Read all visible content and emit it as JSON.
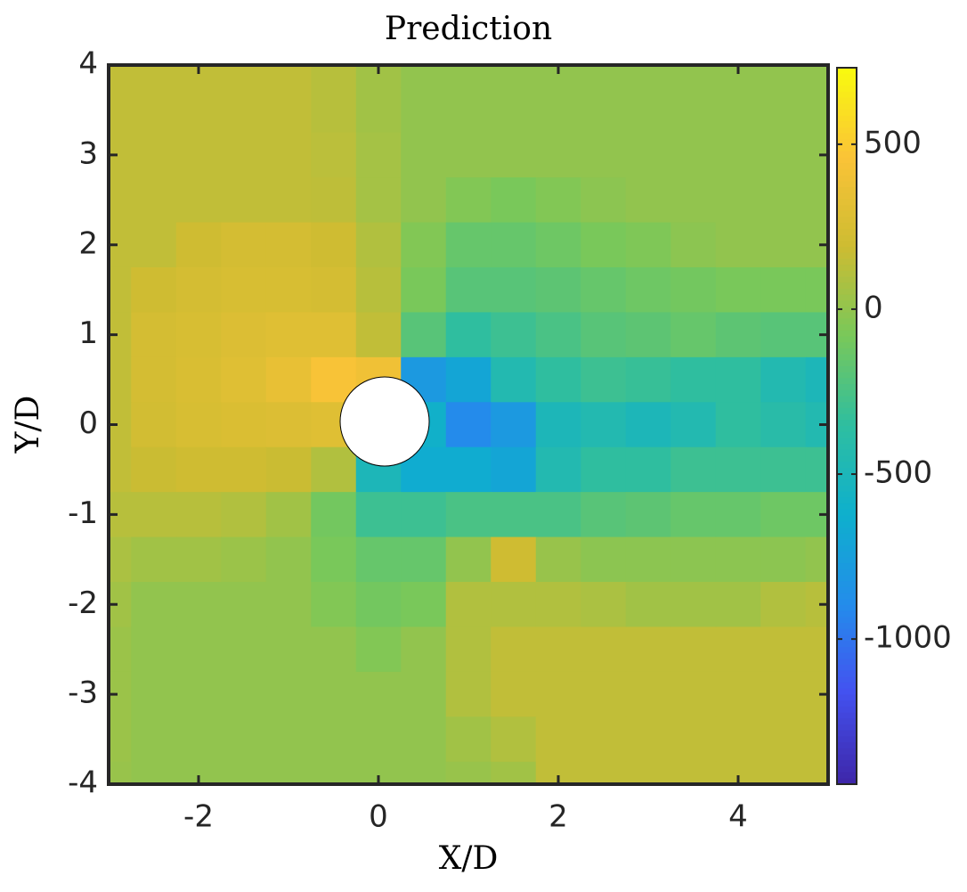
{
  "chart_data": {
    "type": "contour",
    "title": "Prediction",
    "xlabel": "X/D",
    "ylabel": "Y/D",
    "xlim": [
      -3,
      5
    ],
    "ylim": [
      -4,
      4
    ],
    "xticks": [
      -2,
      0,
      2,
      4
    ],
    "yticks": [
      -4,
      -3,
      -2,
      -1,
      0,
      1,
      2,
      3,
      4
    ],
    "clim": [
      -1440,
      732
    ],
    "cticks": [
      -1000,
      -500,
      0,
      500
    ],
    "colormap": "parula",
    "x": [
      -3,
      -2.5,
      -2,
      -1.5,
      -1,
      -0.5,
      0,
      0.5,
      1,
      1.5,
      2,
      2.5,
      3,
      3.5,
      4,
      4.5,
      5
    ],
    "y": [
      4,
      3.5,
      3,
      2.5,
      2,
      1.5,
      1,
      0.5,
      0,
      -0.5,
      -1,
      -1.5,
      -2,
      -2.5,
      -3,
      -3.5,
      -4
    ],
    "z": [
      [
        150,
        150,
        150,
        150,
        150,
        120,
        50,
        0,
        0,
        0,
        0,
        0,
        0,
        0,
        0,
        0,
        0
      ],
      [
        150,
        150,
        150,
        150,
        150,
        120,
        50,
        0,
        0,
        0,
        0,
        0,
        0,
        0,
        0,
        0,
        0
      ],
      [
        150,
        150,
        150,
        150,
        150,
        130,
        60,
        0,
        0,
        0,
        0,
        0,
        0,
        0,
        0,
        0,
        0
      ],
      [
        150,
        150,
        150,
        150,
        150,
        140,
        60,
        0,
        -50,
        -80,
        -50,
        -20,
        0,
        0,
        0,
        0,
        0
      ],
      [
        150,
        150,
        200,
        230,
        230,
        200,
        100,
        -50,
        -150,
        -150,
        -120,
        -80,
        -60,
        -20,
        0,
        0,
        0
      ],
      [
        150,
        200,
        230,
        250,
        250,
        230,
        120,
        -80,
        -200,
        -200,
        -180,
        -150,
        -120,
        -100,
        -80,
        -80,
        -80
      ],
      [
        150,
        230,
        250,
        280,
        300,
        300,
        150,
        -200,
        -350,
        -300,
        -250,
        -200,
        -180,
        -150,
        -180,
        -200,
        -200
      ],
      [
        150,
        230,
        260,
        300,
        350,
        450,
        400,
        -800,
        -700,
        -450,
        -350,
        -300,
        -320,
        -350,
        -350,
        -450,
        -500
      ],
      [
        150,
        220,
        250,
        270,
        280,
        300,
        0,
        -600,
        -900,
        -800,
        -500,
        -450,
        -500,
        -450,
        -350,
        -400,
        -450
      ],
      [
        150,
        180,
        200,
        200,
        180,
        100,
        -500,
        -650,
        -650,
        -700,
        -450,
        -350,
        -350,
        -300,
        -300,
        -300,
        -300
      ],
      [
        120,
        120,
        120,
        100,
        50,
        -100,
        -300,
        -300,
        -250,
        -250,
        -250,
        -200,
        -180,
        -150,
        -150,
        -120,
        -120
      ],
      [
        80,
        50,
        50,
        30,
        0,
        -80,
        -150,
        -150,
        0,
        200,
        20,
        -20,
        -20,
        -20,
        -20,
        -20,
        0
      ],
      [
        50,
        0,
        0,
        0,
        0,
        -50,
        -100,
        -80,
        100,
        100,
        100,
        80,
        50,
        50,
        50,
        100,
        120
      ],
      [
        30,
        0,
        0,
        0,
        0,
        0,
        -50,
        0,
        100,
        150,
        150,
        150,
        150,
        150,
        150,
        150,
        150
      ],
      [
        30,
        0,
        0,
        0,
        0,
        0,
        0,
        0,
        100,
        150,
        150,
        150,
        150,
        150,
        150,
        150,
        150
      ],
      [
        30,
        0,
        0,
        0,
        0,
        0,
        0,
        0,
        50,
        100,
        150,
        150,
        150,
        150,
        150,
        150,
        150
      ],
      [
        20,
        0,
        0,
        0,
        0,
        0,
        0,
        0,
        20,
        50,
        150,
        150,
        150,
        150,
        150,
        150,
        150
      ]
    ]
  }
}
